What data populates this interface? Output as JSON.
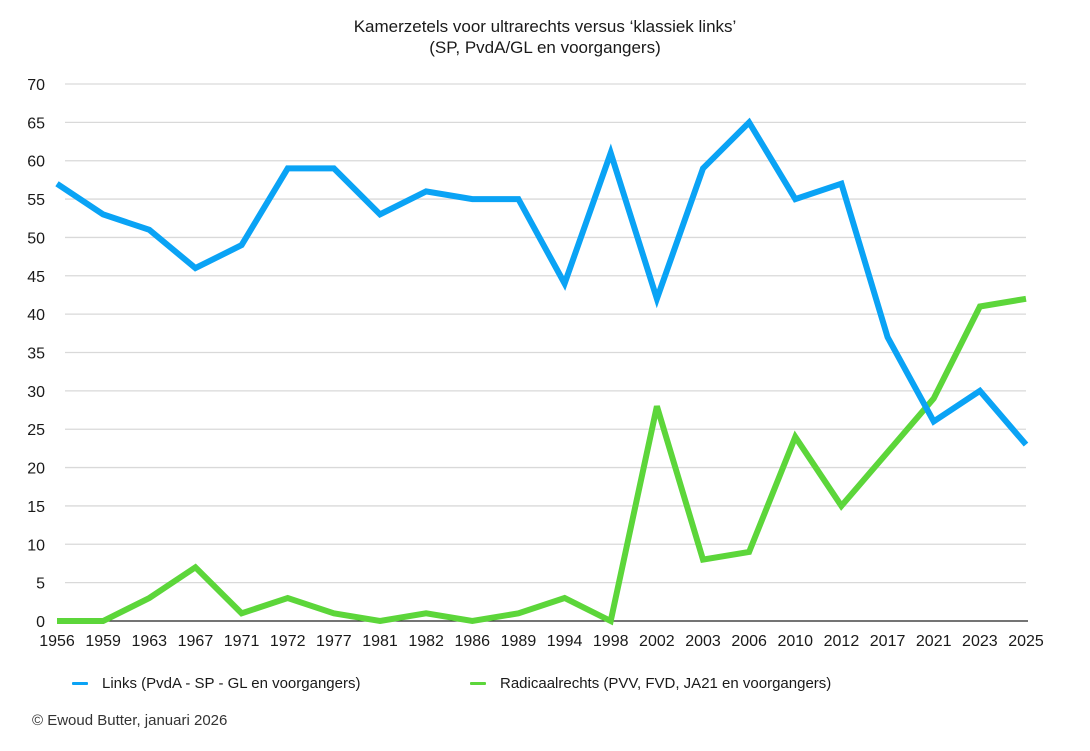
{
  "chart_data": {
    "type": "line",
    "title": "Kamerzetels voor ultrarechts versus ‘klassiek links’",
    "subtitle": "(SP, PvdA/GL en voorgangers)",
    "xlabel": "",
    "ylabel": "",
    "ylim": [
      0,
      70
    ],
    "yticks": [
      "0",
      "5",
      "10",
      "15",
      "20",
      "25",
      "30",
      "35",
      "40",
      "45",
      "50",
      "55",
      "60",
      "65",
      "70"
    ],
    "grid": true,
    "legend_position": "bottom",
    "categories": [
      "1956",
      "1959",
      "1963",
      "1967",
      "1971",
      "1972",
      "1977",
      "1981",
      "1982",
      "1986",
      "1989",
      "1994",
      "1998",
      "2002",
      "2003",
      "2006",
      "2010",
      "2012",
      "2017",
      "2021",
      "2023",
      "2025"
    ],
    "series": [
      {
        "name": "Links (PvdA - SP - GL en voorgangers)",
        "color": "#0aa3f5",
        "values": [
          57,
          53,
          51,
          46,
          49,
          59,
          59,
          53,
          56,
          55,
          55,
          44,
          61,
          42,
          59,
          65,
          55,
          57,
          37,
          26,
          30,
          23
        ]
      },
      {
        "name": "Radicaalrechts (PVV, FVD, JA21 en voorgangers)",
        "color": "#5cd63a",
        "values": [
          0,
          0,
          3,
          7,
          1,
          3,
          1,
          0,
          1,
          0,
          1,
          3,
          0,
          28,
          8,
          9,
          24,
          15,
          22,
          29,
          41,
          42
        ]
      }
    ]
  },
  "footer": "© Ewoud Butter, januari 2026"
}
